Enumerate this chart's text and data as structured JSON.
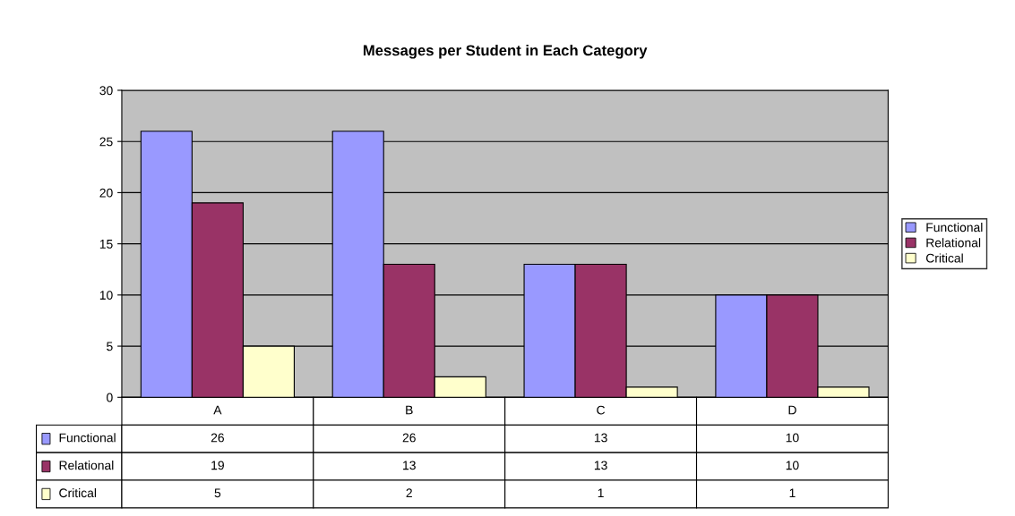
{
  "chart_data": {
    "type": "bar",
    "title": "Messages per Student in Each Category",
    "categories": [
      "A",
      "B",
      "C",
      "D"
    ],
    "series": [
      {
        "name": "Functional",
        "color": "#9999ff",
        "values": [
          26,
          26,
          13,
          10
        ]
      },
      {
        "name": "Relational",
        "color": "#993366",
        "values": [
          19,
          13,
          13,
          10
        ]
      },
      {
        "name": "Critical",
        "color": "#ffffcc",
        "values": [
          5,
          2,
          1,
          1
        ]
      }
    ],
    "ylim": [
      0,
      30
    ],
    "yticks": [
      0,
      5,
      10,
      15,
      20,
      25,
      30
    ],
    "grid": "y",
    "legend": "right",
    "data_labels": true
  }
}
